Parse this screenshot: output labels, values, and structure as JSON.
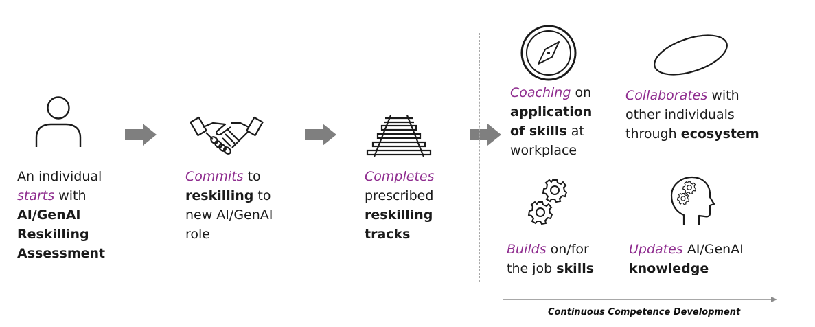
{
  "steps": [
    {
      "lines": [
        {
          "parts": [
            {
              "t": "An individual",
              "s": "n"
            }
          ]
        },
        {
          "parts": [
            {
              "t": "starts",
              "s": "i"
            },
            {
              "t": " with",
              "s": "n"
            }
          ]
        },
        {
          "parts": [
            {
              "t": "AI/GenAI",
              "s": "b"
            }
          ]
        },
        {
          "parts": [
            {
              "t": "Reskilling",
              "s": "b"
            }
          ]
        },
        {
          "parts": [
            {
              "t": "Assessment",
              "s": "b"
            }
          ]
        }
      ],
      "icon": "person-icon"
    },
    {
      "lines": [
        {
          "parts": [
            {
              "t": "Commits",
              "s": "i"
            },
            {
              "t": " to",
              "s": "n"
            }
          ]
        },
        {
          "parts": [
            {
              "t": "reskilling",
              "s": "b"
            },
            {
              "t": " to",
              "s": "n"
            }
          ]
        },
        {
          "parts": [
            {
              "t": "new AI/GenAI",
              "s": "n"
            }
          ]
        },
        {
          "parts": [
            {
              "t": "role",
              "s": "n"
            }
          ]
        }
      ],
      "icon": "handshake-icon"
    },
    {
      "lines": [
        {
          "parts": [
            {
              "t": "Completes",
              "s": "i"
            }
          ]
        },
        {
          "parts": [
            {
              "t": "prescribed",
              "s": "n"
            }
          ]
        },
        {
          "parts": [
            {
              "t": "reskilling",
              "s": "b"
            }
          ]
        },
        {
          "parts": [
            {
              "t": "tracks",
              "s": "b"
            }
          ]
        }
      ],
      "icon": "railway-tracks-icon"
    }
  ],
  "outcomes": [
    {
      "lines": [
        {
          "parts": [
            {
              "t": "Coaching",
              "s": "i"
            },
            {
              "t": " on",
              "s": "n"
            }
          ]
        },
        {
          "parts": [
            {
              "t": "application",
              "s": "b"
            }
          ]
        },
        {
          "parts": [
            {
              "t": "of skills",
              "s": "b"
            },
            {
              "t": " at",
              "s": "n"
            }
          ]
        },
        {
          "parts": [
            {
              "t": "workplace",
              "s": "n"
            }
          ]
        }
      ],
      "icon": "compass-icon"
    },
    {
      "lines": [
        {
          "parts": [
            {
              "t": "Collaborates",
              "s": "i"
            },
            {
              "t": " with",
              "s": "n"
            }
          ]
        },
        {
          "parts": [
            {
              "t": "other individuals",
              "s": "n"
            }
          ]
        },
        {
          "parts": [
            {
              "t": "through ",
              "s": "n"
            },
            {
              "t": "ecosystem",
              "s": "b"
            }
          ]
        }
      ],
      "icon": "ecosystem-ellipse-icon"
    },
    {
      "lines": [
        {
          "parts": [
            {
              "t": "Builds",
              "s": "i"
            },
            {
              "t": " on/for",
              "s": "n"
            }
          ]
        },
        {
          "parts": [
            {
              "t": "the job ",
              "s": "n"
            },
            {
              "t": "skills",
              "s": "b"
            }
          ]
        }
      ],
      "icon": "gears-icon"
    },
    {
      "lines": [
        {
          "parts": [
            {
              "t": "Updates",
              "s": "i"
            },
            {
              "t": " AI/GenAI",
              "s": "n"
            }
          ]
        },
        {
          "parts": [
            {
              "t": "knowledge",
              "s": "b"
            }
          ]
        }
      ],
      "icon": "head-gears-icon"
    }
  ],
  "caption": "Continuous Competence Development",
  "colors": {
    "accent": "#8f2d8f",
    "arrow": "#7f7f7f",
    "text": "#1a1a1a",
    "divider": "#a8a8a8"
  }
}
